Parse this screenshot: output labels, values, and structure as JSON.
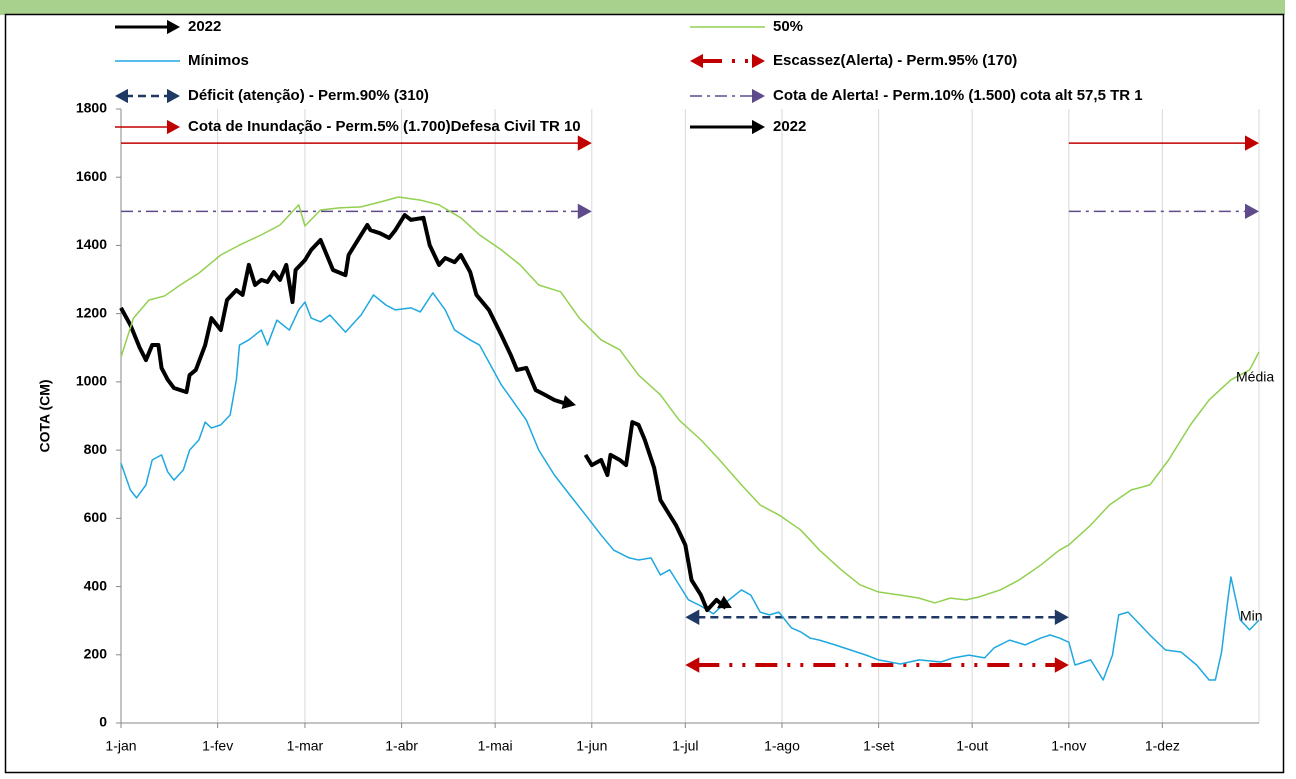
{
  "chart_data": {
    "type": "line",
    "ylabel": "COTA (CM)",
    "xlim": [
      0,
      365
    ],
    "ylim": [
      0,
      1800
    ],
    "yticks": [
      0,
      200,
      400,
      600,
      800,
      1000,
      1200,
      1400,
      1600,
      1800
    ],
    "xticks": [
      {
        "value": 0,
        "label": "1-jan"
      },
      {
        "value": 31,
        "label": "1-fev"
      },
      {
        "value": 59,
        "label": "1-mar"
      },
      {
        "value": 90,
        "label": "1-abr"
      },
      {
        "value": 120,
        "label": "1-mai"
      },
      {
        "value": 151,
        "label": "1-jun"
      },
      {
        "value": 181,
        "label": "1-jul"
      },
      {
        "value": 212,
        "label": "1-ago"
      },
      {
        "value": 243,
        "label": "1-set"
      },
      {
        "value": 273,
        "label": "1-out"
      },
      {
        "value": 304,
        "label": "1-nov"
      },
      {
        "value": 334,
        "label": "1-dez"
      }
    ],
    "grid": true,
    "annotations": [
      "Média",
      "Min"
    ],
    "annotation_color": "#c00000",
    "series": [
      {
        "name": "2022",
        "color": "#000000",
        "width": 4,
        "arrow": true,
        "x": [
          0,
          3,
          6,
          8,
          10,
          12,
          13,
          15,
          17,
          21,
          22,
          24,
          27,
          29,
          32,
          34,
          37,
          39,
          41,
          43,
          45,
          47,
          49,
          51,
          53,
          55,
          56,
          59,
          61,
          64,
          66,
          68,
          72,
          73,
          76,
          79,
          80,
          83,
          86,
          88,
          91,
          93,
          97,
          99,
          102,
          104,
          107,
          109,
          112,
          114,
          118,
          122,
          125,
          127,
          130,
          133,
          136,
          139,
          144
        ],
        "values": [
          1217,
          1167,
          1100,
          1064,
          1108,
          1108,
          1041,
          1006,
          982,
          970,
          1020,
          1035,
          1108,
          1187,
          1152,
          1240,
          1269,
          1255,
          1343,
          1284,
          1299,
          1293,
          1322,
          1299,
          1343,
          1234,
          1328,
          1357,
          1387,
          1416,
          1372,
          1328,
          1313,
          1372,
          1416,
          1460,
          1445,
          1436,
          1422,
          1445,
          1489,
          1475,
          1481,
          1401,
          1343,
          1363,
          1351,
          1372,
          1322,
          1255,
          1211,
          1137,
          1079,
          1035,
          1041,
          976,
          962,
          947,
          932
        ]
      },
      {
        "name": "50%",
        "color": "#92d050",
        "width": 1.5,
        "x": [
          0,
          4,
          9,
          14,
          19,
          25,
          32,
          38,
          45,
          51,
          57,
          59,
          64,
          70,
          77,
          83,
          89,
          96,
          102,
          109,
          115,
          122,
          128,
          134,
          141,
          147,
          154,
          160,
          166,
          173,
          179,
          186,
          192,
          199,
          205,
          211,
          218,
          224,
          231,
          237,
          243,
          250,
          256,
          261,
          266,
          271,
          275,
          282,
          288,
          295,
          301,
          304,
          311,
          317,
          324,
          330,
          336,
          343,
          349,
          356,
          362,
          365
        ],
        "values": [
          1073,
          1187,
          1240,
          1252,
          1284,
          1319,
          1372,
          1401,
          1431,
          1460,
          1519,
          1457,
          1504,
          1510,
          1513,
          1527,
          1542,
          1533,
          1519,
          1481,
          1431,
          1387,
          1343,
          1284,
          1264,
          1187,
          1123,
          1094,
          1020,
          962,
          888,
          830,
          771,
          698,
          639,
          610,
          566,
          507,
          449,
          405,
          384,
          375,
          366,
          352,
          366,
          361,
          369,
          390,
          419,
          463,
          507,
          522,
          580,
          639,
          683,
          698,
          771,
          874,
          947,
          1006,
          1035,
          1088
        ]
      },
      {
        "name": "Mínimos",
        "color": "#1fa8e0",
        "width": 1.5,
        "x": [
          0,
          3,
          5,
          8,
          10,
          13,
          15,
          17,
          20,
          22,
          25,
          27,
          29,
          32,
          35,
          37,
          38,
          41,
          45,
          47,
          50,
          54,
          57,
          59,
          61,
          64,
          67,
          72,
          77,
          81,
          85,
          88,
          93,
          96,
          100,
          104,
          107,
          112,
          115,
          118,
          122,
          125,
          130,
          134,
          139,
          144,
          149,
          154,
          158,
          163,
          166,
          170,
          173,
          176,
          179,
          182,
          186,
          190,
          192,
          195,
          199,
          202,
          205,
          208,
          211,
          215,
          218,
          221,
          224,
          229,
          234,
          239,
          243,
          250,
          256,
          263,
          267,
          272,
          277,
          280,
          285,
          290,
          295,
          298,
          301,
          304,
          306,
          311,
          314,
          315,
          318,
          320,
          323,
          327,
          330,
          335,
          340,
          345,
          349,
          351,
          353,
          355,
          356,
          359,
          362,
          365
        ],
        "values": [
          762,
          683,
          660,
          698,
          771,
          786,
          736,
          712,
          742,
          800,
          830,
          882,
          865,
          874,
          903,
          1006,
          1108,
          1123,
          1152,
          1108,
          1181,
          1152,
          1211,
          1234,
          1187,
          1176,
          1196,
          1146,
          1196,
          1255,
          1225,
          1211,
          1217,
          1205,
          1261,
          1211,
          1152,
          1123,
          1108,
          1058,
          991,
          953,
          888,
          800,
          727,
          668,
          610,
          551,
          507,
          484,
          478,
          484,
          434,
          449,
          405,
          361,
          343,
          320,
          337,
          361,
          390,
          375,
          325,
          317,
          325,
          279,
          267,
          249,
          243,
          229,
          214,
          199,
          185,
          173,
          185,
          179,
          191,
          199,
          191,
          220,
          243,
          229,
          249,
          258,
          249,
          237,
          170,
          185,
          141,
          126,
          199,
          317,
          325,
          287,
          258,
          214,
          208,
          170,
          126,
          126,
          208,
          361,
          428,
          302,
          273,
          302
        ]
      },
      {
        "name": "Escassez(Alerta) - Perm.95% (170)",
        "color": "#c00000",
        "width": 4,
        "dash": "22 10 3 10 3 10",
        "double": true,
        "value": 170,
        "ranges": [
          [
            181,
            304
          ]
        ]
      },
      {
        "name": "Déficit (atenção) - Perm.90% (310)",
        "color": "#1f3864",
        "width": 2.5,
        "dash": "8 5",
        "double": true,
        "value": 310,
        "ranges": [
          [
            181,
            304
          ]
        ]
      },
      {
        "name": "Cota de Alerta! - Perm.10% (1.500) cota alt 57,5  TR 1",
        "color": "#5f4b8b",
        "width": 1.5,
        "dash": "12 5 3 5",
        "double": false,
        "value": 1500,
        "ranges": [
          [
            0,
            151
          ],
          [
            304,
            365
          ]
        ]
      },
      {
        "name": "Cota de Inundação  - Perm.5% (1.700)Defesa Civil TR 10",
        "color": "#c00000",
        "width": 1.5,
        "dash": "none",
        "double": false,
        "value": 1700,
        "ranges": [
          [
            0,
            151
          ],
          [
            304,
            365
          ]
        ]
      },
      {
        "name": "2022",
        "color": "#000000",
        "width": 4,
        "arrow": true,
        "x": [
          149,
          151,
          154,
          156,
          157,
          160,
          162,
          164,
          166,
          168,
          171,
          173,
          175,
          178,
          181,
          183,
          186,
          188,
          191,
          194
        ],
        "values": [
          786,
          756,
          771,
          727,
          786,
          771,
          756,
          882,
          874,
          830,
          748,
          654,
          624,
          580,
          522,
          419,
          375,
          331,
          361,
          337
        ]
      }
    ]
  }
}
